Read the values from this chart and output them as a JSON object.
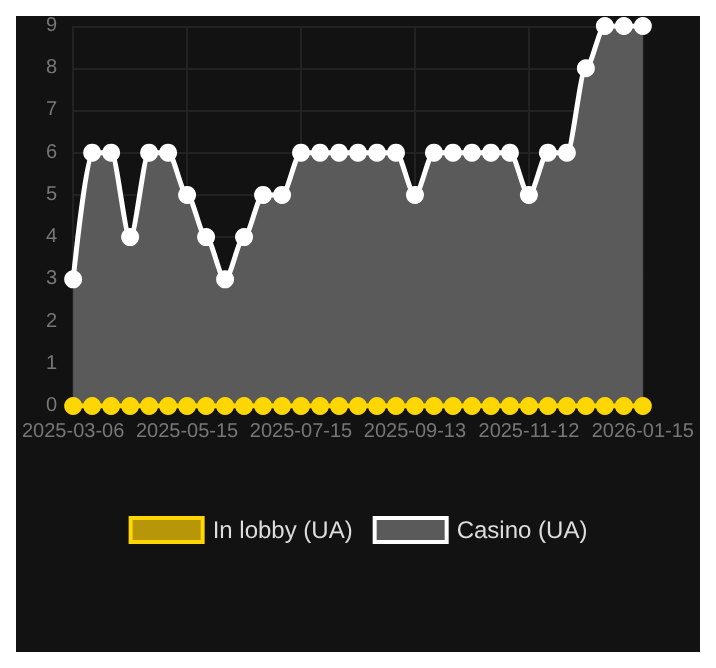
{
  "chart_data": {
    "type": "area",
    "categories": [
      "2025-03-06",
      null,
      null,
      null,
      null,
      null,
      "2025-05-15",
      null,
      null,
      null,
      null,
      null,
      "2025-07-15",
      null,
      null,
      null,
      null,
      null,
      "2025-09-13",
      null,
      null,
      null,
      null,
      null,
      "2025-11-12",
      null,
      null,
      null,
      null,
      null,
      "2026-01-15"
    ],
    "series": [
      {
        "name": "In lobby (UA)",
        "type": "line",
        "color": "#ffd700",
        "values": [
          0,
          0,
          0,
          0,
          0,
          0,
          0,
          0,
          0,
          0,
          0,
          0,
          0,
          0,
          0,
          0,
          0,
          0,
          0,
          0,
          0,
          0,
          0,
          0,
          0,
          0,
          0,
          0,
          0,
          0,
          0
        ]
      },
      {
        "name": "Casino (UA)",
        "color": "#ffffff",
        "values": [
          3,
          6,
          6,
          4,
          6,
          6,
          5,
          4,
          3,
          4,
          5,
          5,
          6,
          6,
          6,
          6,
          6,
          6,
          5,
          6,
          6,
          6,
          6,
          6,
          5,
          6,
          6,
          8,
          9,
          9,
          9
        ]
      }
    ],
    "ylim": [
      0,
      9
    ],
    "yticks": [
      0,
      1,
      2,
      3,
      4,
      5,
      6,
      7,
      8,
      9
    ],
    "grid": true,
    "legend": "bottom",
    "marker": "circle",
    "line_style": "solid"
  }
}
